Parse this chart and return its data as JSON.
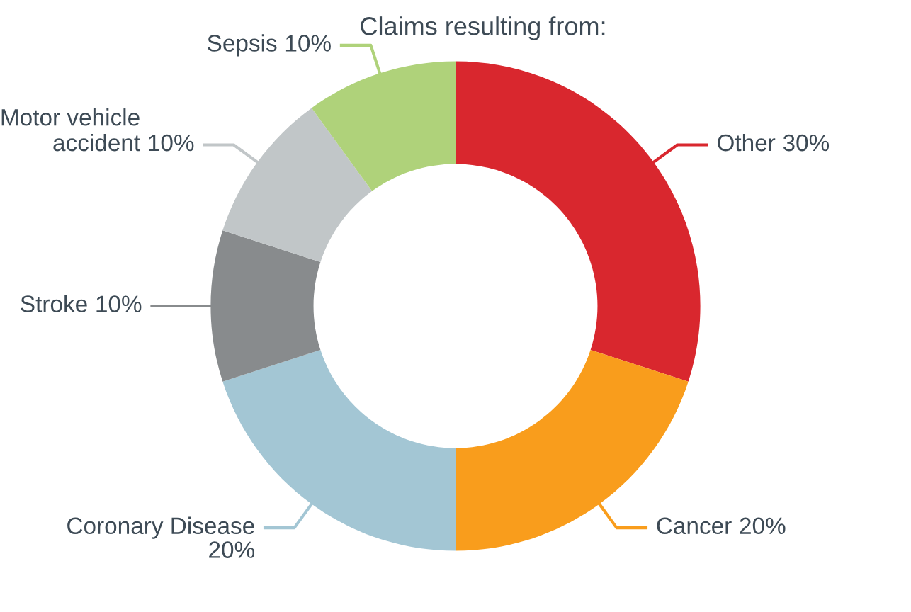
{
  "chart_data": {
    "type": "donut",
    "title": "Claims resulting from:",
    "categories": [
      "Other",
      "Cancer",
      "Coronary Disease",
      "Stroke",
      "Motor vehicle\naccident",
      "Sepsis"
    ],
    "values": [
      30,
      20,
      20,
      10,
      10,
      10
    ],
    "colors": [
      "#d9272e",
      "#f99d1c",
      "#a3c6d4",
      "#888b8d",
      "#c1c6c8",
      "#afd27a"
    ],
    "value_labels": [
      "30%",
      "20%",
      "20%",
      "10%",
      "10%",
      "10%"
    ],
    "legend": false
  }
}
